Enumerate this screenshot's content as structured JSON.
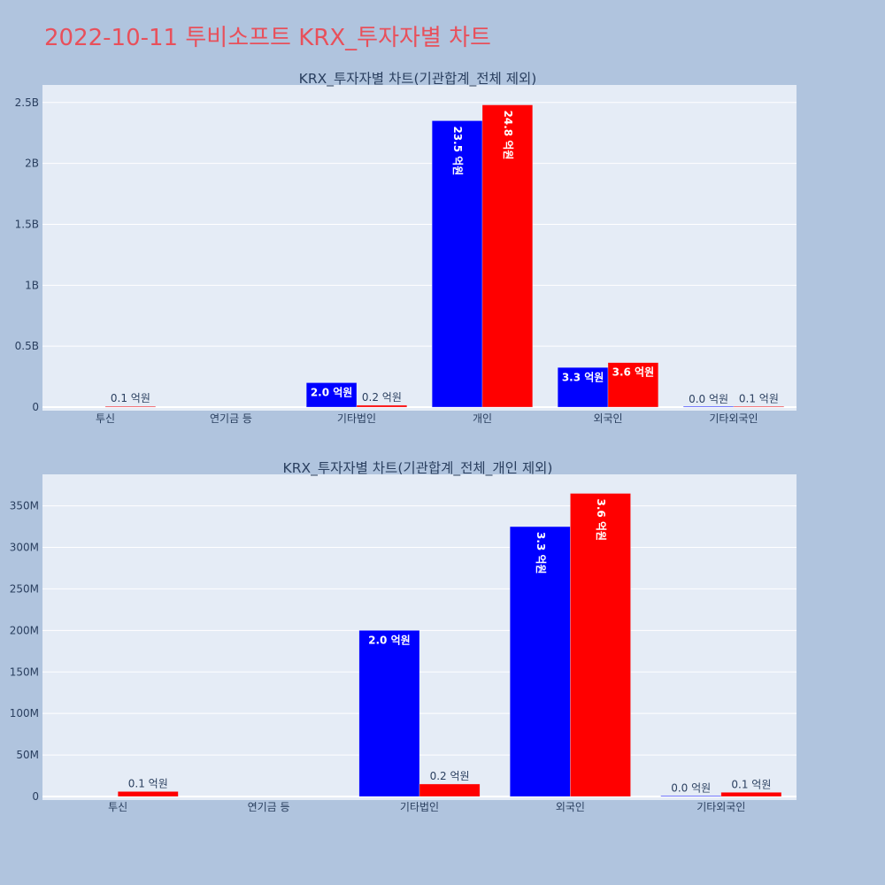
{
  "page_title": "2022-10-11 투비소프트 KRX_투자자별 차트",
  "colors": {
    "series_a": "#0000ff",
    "series_b": "#ff0000",
    "plot_bg": "#e5ecf6",
    "page_bg": "#b0c4de",
    "title": "#e8505b"
  },
  "chart_data": [
    {
      "type": "bar",
      "title": "KRX_투자자별 차트(기관합계_전체 제외)",
      "xlabel": "",
      "ylabel": "",
      "categories": [
        "투신",
        "연기금 등",
        "기타법인",
        "개인",
        "외국인",
        "기타외국인"
      ],
      "series": [
        {
          "values": [
            null,
            null,
            200000000,
            2350000000,
            325000000,
            500000
          ],
          "labels": [
            "",
            "",
            "2.0 억원",
            "23.5 억원",
            "3.3 억원",
            "0.0 억원"
          ]
        },
        {
          "values": [
            6000000,
            null,
            15000000,
            2480000000,
            365000000,
            5000000
          ],
          "labels": [
            "0.1 억원",
            "",
            "0.2 억원",
            "24.8 억원",
            "3.6 억원",
            "0.1 억원"
          ]
        }
      ],
      "ylim": [
        0,
        2500000000
      ],
      "yticks": [
        0,
        500000000,
        1000000000,
        1500000000,
        2000000000,
        2500000000
      ],
      "ytick_labels": [
        "0",
        "0.5B",
        "1B",
        "1.5B",
        "2B",
        "2.5B"
      ],
      "grid": true,
      "legend": "none"
    },
    {
      "type": "bar",
      "title": "KRX_투자자별 차트(기관합계_전체_개인 제외)",
      "xlabel": "",
      "ylabel": "",
      "categories": [
        "투신",
        "연기금 등",
        "기타법인",
        "외국인",
        "기타외국인"
      ],
      "series": [
        {
          "values": [
            null,
            null,
            200000000,
            325000000,
            500000
          ],
          "labels": [
            "",
            "",
            "2.0 억원",
            "3.3 억원",
            "0.0 억원"
          ]
        },
        {
          "values": [
            6000000,
            null,
            15000000,
            365000000,
            5000000
          ],
          "labels": [
            "0.1 억원",
            "",
            "0.2 억원",
            "3.6 억원",
            "0.1 억원"
          ]
        }
      ],
      "ylim": [
        0,
        350000000
      ],
      "yticks": [
        0,
        50000000,
        100000000,
        150000000,
        200000000,
        250000000,
        300000000,
        350000000
      ],
      "ytick_labels": [
        "0",
        "50M",
        "100M",
        "150M",
        "200M",
        "250M",
        "300M",
        "350M"
      ],
      "grid": true,
      "legend": "none"
    }
  ]
}
